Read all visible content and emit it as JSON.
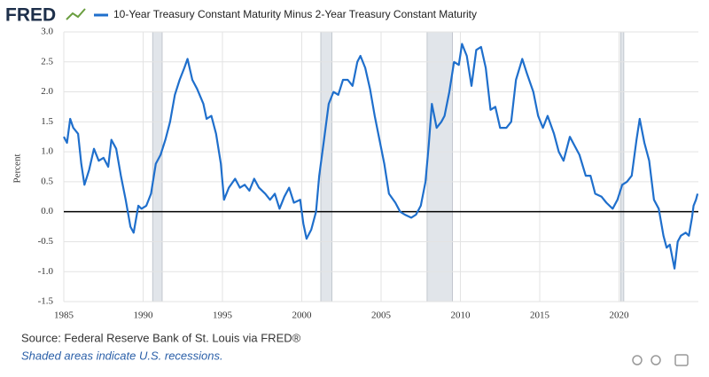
{
  "logo": "FRED",
  "chart_data": {
    "type": "line",
    "ylabel": "Percent",
    "source": "Source: Federal Reserve Bank of St. Louis via FRED®",
    "note": "Shaded areas indicate U.S. recessions.",
    "x": [
      1985.0,
      1985.2,
      1985.4,
      1985.6,
      1985.9,
      1986.1,
      1986.3,
      1986.6,
      1986.9,
      1987.2,
      1987.5,
      1987.8,
      1988.0,
      1988.3,
      1988.6,
      1988.9,
      1989.2,
      1989.4,
      1989.7,
      1989.9,
      1990.2,
      1990.5,
      1990.8,
      1991.1,
      1991.4,
      1991.7,
      1992.0,
      1992.3,
      1992.6,
      1992.8,
      1993.1,
      1993.4,
      1993.8,
      1994.0,
      1994.3,
      1994.6,
      1994.9,
      1995.1,
      1995.4,
      1995.8,
      1996.1,
      1996.4,
      1996.7,
      1997.0,
      1997.3,
      1997.7,
      1998.0,
      1998.3,
      1998.6,
      1998.9,
      1999.2,
      1999.5,
      1999.9,
      2000.1,
      2000.3,
      2000.6,
      2000.9,
      2001.1,
      2001.4,
      2001.7,
      2002.0,
      2002.3,
      2002.6,
      2002.9,
      2003.2,
      2003.5,
      2003.7,
      2004.0,
      2004.3,
      2004.6,
      2004.9,
      2005.2,
      2005.5,
      2005.9,
      2006.2,
      2006.5,
      2006.9,
      2007.2,
      2007.5,
      2007.8,
      2008.0,
      2008.2,
      2008.5,
      2008.8,
      2009.0,
      2009.3,
      2009.6,
      2009.9,
      2010.1,
      2010.4,
      2010.7,
      2011.0,
      2011.3,
      2011.6,
      2011.9,
      2012.2,
      2012.5,
      2012.9,
      2013.2,
      2013.5,
      2013.9,
      2014.2,
      2014.6,
      2014.9,
      2015.2,
      2015.5,
      2015.9,
      2016.2,
      2016.5,
      2016.9,
      2017.2,
      2017.5,
      2017.9,
      2018.2,
      2018.5,
      2018.9,
      2019.2,
      2019.6,
      2019.9,
      2020.2,
      2020.5,
      2020.8,
      2021.1,
      2021.3,
      2021.6,
      2021.9,
      2022.2,
      2022.5,
      2022.8,
      2023.0,
      2023.2,
      2023.5,
      2023.7,
      2023.9,
      2024.2,
      2024.4,
      2024.6,
      2024.7,
      2024.85,
      2024.95
    ],
    "series": [
      {
        "name": "10-Year Treasury Constant Maturity Minus 2-Year Treasury Constant Maturity",
        "color": "#1f6fcc",
        "values": [
          1.25,
          1.15,
          1.55,
          1.4,
          1.3,
          0.8,
          0.45,
          0.7,
          1.05,
          0.85,
          0.9,
          0.75,
          1.2,
          1.05,
          0.6,
          0.2,
          -0.25,
          -0.35,
          0.1,
          0.05,
          0.1,
          0.3,
          0.8,
          0.95,
          1.2,
          1.5,
          1.95,
          2.2,
          2.4,
          2.55,
          2.2,
          2.05,
          1.8,
          1.55,
          1.6,
          1.3,
          0.8,
          0.2,
          0.4,
          0.55,
          0.4,
          0.45,
          0.35,
          0.55,
          0.4,
          0.3,
          0.2,
          0.3,
          0.05,
          0.25,
          0.4,
          0.15,
          0.2,
          -0.2,
          -0.45,
          -0.3,
          0.0,
          0.6,
          1.2,
          1.8,
          2.0,
          1.95,
          2.2,
          2.2,
          2.1,
          2.5,
          2.6,
          2.4,
          2.05,
          1.6,
          1.2,
          0.8,
          0.3,
          0.15,
          0.0,
          -0.05,
          -0.1,
          -0.05,
          0.1,
          0.5,
          1.1,
          1.8,
          1.4,
          1.5,
          1.6,
          2.0,
          2.5,
          2.45,
          2.8,
          2.6,
          2.1,
          2.7,
          2.75,
          2.4,
          1.7,
          1.75,
          1.4,
          1.4,
          1.5,
          2.2,
          2.55,
          2.3,
          2.0,
          1.6,
          1.4,
          1.6,
          1.3,
          1.0,
          0.85,
          1.25,
          1.1,
          0.95,
          0.6,
          0.6,
          0.3,
          0.25,
          0.15,
          0.05,
          0.2,
          0.45,
          0.5,
          0.6,
          1.2,
          1.55,
          1.15,
          0.85,
          0.2,
          0.05,
          -0.4,
          -0.6,
          -0.55,
          -0.95,
          -0.5,
          -0.4,
          -0.35,
          -0.4,
          -0.1,
          0.1,
          0.2,
          0.3
        ]
      }
    ],
    "recessions": [
      [
        1990.6,
        1991.2
      ],
      [
        2001.2,
        2001.9
      ],
      [
        2007.9,
        2009.5
      ],
      [
        2020.1,
        2020.3
      ]
    ],
    "reference_line": 0,
    "xlim": [
      1985,
      2025
    ],
    "xticks": [
      1985,
      1990,
      1995,
      2000,
      2005,
      2010,
      2015,
      2020
    ],
    "ylim": [
      -1.5,
      3.0
    ],
    "yticks": [
      {
        "value": 3,
        "label": "3.0"
      },
      2.5,
      {
        "value": 2,
        "label": "2.0"
      },
      1.5,
      {
        "value": 1,
        "label": "1.0"
      },
      0.5,
      {
        "value": 0,
        "label": "0.0"
      },
      -0.5,
      {
        "value": -1,
        "label": "-1.0"
      },
      -1.5
    ],
    "grid": true
  }
}
